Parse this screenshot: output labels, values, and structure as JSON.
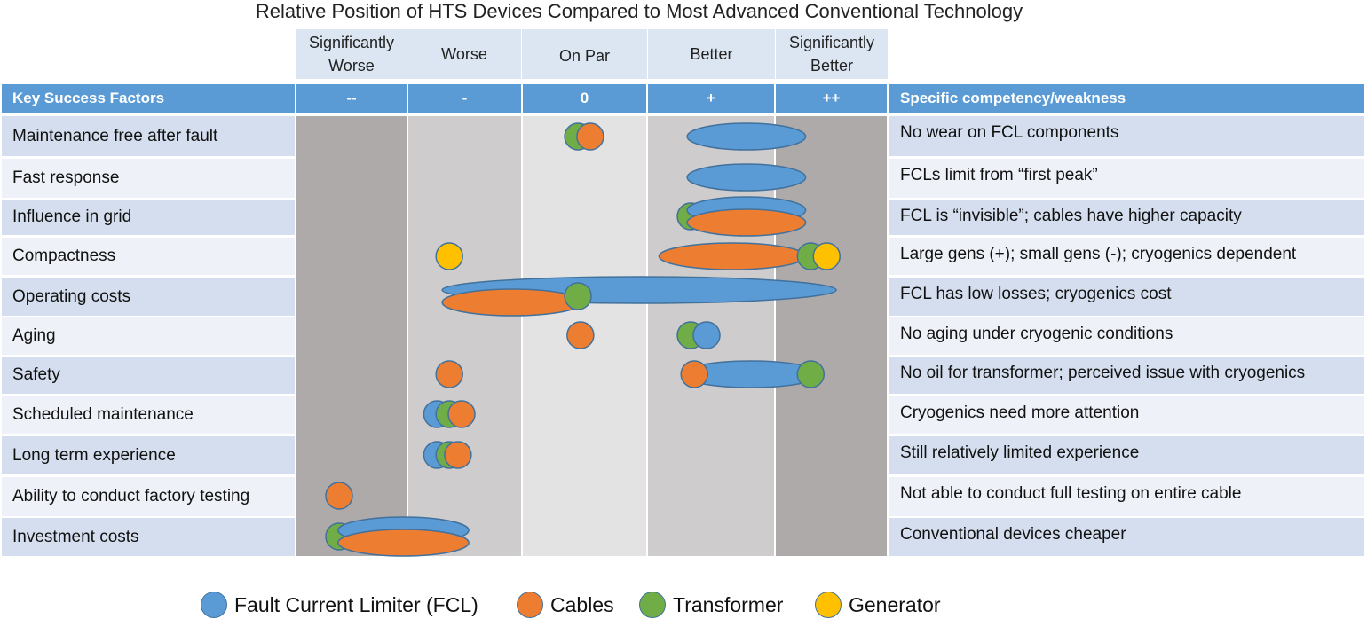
{
  "title": "Relative Position of HTS Devices Compared to Most Advanced Conventional Technology",
  "scale_labels": [
    "Significantly\nWorse",
    "Worse",
    "On Par",
    "Better",
    "Significantly\nBetter"
  ],
  "header": {
    "factors_label": "Key Success Factors",
    "symbols": [
      "--",
      "-",
      "0",
      "+",
      "++"
    ],
    "comment_label": "Specific competency/weakness"
  },
  "rows": [
    {
      "factor": "Maintenance free after fault",
      "comment": "No wear on FCL components"
    },
    {
      "factor": "Fast response",
      "comment": "FCLs  limit from “first peak”"
    },
    {
      "factor": "Influence in grid",
      "comment": "FCL is “invisible”; cables have higher capacity"
    },
    {
      "factor": "Compactness",
      "comment": "Large gens (+); small gens (-); cryogenics dependent"
    },
    {
      "factor": "Operating costs",
      "comment": "FCL has low losses; cryogenics cost"
    },
    {
      "factor": "Aging",
      "comment": "No aging under cryogenic conditions"
    },
    {
      "factor": "Safety",
      "comment": "No oil for transformer; perceived issue with cryogenics"
    },
    {
      "factor": "Scheduled maintenance",
      "comment": "Cryogenics need more attention"
    },
    {
      "factor": "Long term experience",
      "comment": "Still relatively limited experience"
    },
    {
      "factor": "Ability to conduct factory testing",
      "comment": "Not able to conduct full testing on entire cable"
    },
    {
      "factor": "Investment costs",
      "comment": "Conventional devices cheaper"
    }
  ],
  "legend": [
    {
      "name": "Fault Current Limiter (FCL)",
      "color": "#5b9bd5"
    },
    {
      "name": "Cables",
      "color": "#ed7d31"
    },
    {
      "name": "Transformer",
      "color": "#70ad47"
    },
    {
      "name": "Generator",
      "color": "#ffc000"
    }
  ],
  "chart_data": {
    "type": "table",
    "title": "Relative Position of HTS Devices Compared to Most Advanced Conventional Technology",
    "scale": [
      "--",
      "-",
      "0",
      "+",
      "++"
    ],
    "scale_values": [
      -2,
      -1,
      0,
      1,
      2
    ],
    "series": [
      "Fault Current Limiter (FCL)",
      "Cables",
      "Transformer",
      "Generator"
    ],
    "colors": {
      "Fault Current Limiter (FCL)": "#5b9bd5",
      "Cables": "#ed7d31",
      "Transformer": "#70ad47",
      "Generator": "#ffc000"
    },
    "markers": [
      {
        "row": 0,
        "series": "Transformer",
        "from": -0.05,
        "to": -0.05
      },
      {
        "row": 0,
        "series": "Cables",
        "from": 0.05,
        "to": 0.05
      },
      {
        "row": 0,
        "series": "Fault Current Limiter (FCL)",
        "from": 0.95,
        "to": 1.7
      },
      {
        "row": 1,
        "series": "Fault Current Limiter (FCL)",
        "from": 0.95,
        "to": 1.7
      },
      {
        "row": 2,
        "series": "Transformer",
        "from": 0.87,
        "to": 0.87
      },
      {
        "row": 2,
        "series": "Fault Current Limiter (FCL)",
        "from": 0.95,
        "to": 1.7,
        "lane": "top"
      },
      {
        "row": 2,
        "series": "Cables",
        "from": 0.95,
        "to": 1.7,
        "lane": "bottom"
      },
      {
        "row": 3,
        "series": "Generator",
        "from": -1.1,
        "to": -1.1
      },
      {
        "row": 3,
        "series": "Cables",
        "from": 0.72,
        "to": 1.7
      },
      {
        "row": 3,
        "series": "Transformer",
        "from": 1.85,
        "to": 1.85
      },
      {
        "row": 3,
        "series": "Generator",
        "from": 1.98,
        "to": 1.98
      },
      {
        "row": 4,
        "series": "Fault Current Limiter (FCL)",
        "from": -1.05,
        "to": 1.95,
        "lane": "top"
      },
      {
        "row": 4,
        "series": "Cables",
        "from": -1.05,
        "to": -0.12,
        "lane": "bottom"
      },
      {
        "row": 4,
        "series": "Transformer",
        "from": -0.05,
        "to": -0.05
      },
      {
        "row": 5,
        "series": "Cables",
        "from": -0.03,
        "to": -0.03
      },
      {
        "row": 5,
        "series": "Transformer",
        "from": 0.87,
        "to": 0.87
      },
      {
        "row": 5,
        "series": "Fault Current Limiter (FCL)",
        "from": 1.0,
        "to": 1.0
      },
      {
        "row": 6,
        "series": "Cables",
        "from": -1.1,
        "to": -1.1
      },
      {
        "row": 6,
        "series": "Fault Current Limiter (FCL)",
        "from": 0.9,
        "to": 1.82
      },
      {
        "row": 6,
        "series": "Cables",
        "from": 0.9,
        "to": 0.9
      },
      {
        "row": 6,
        "series": "Transformer",
        "from": 1.85,
        "to": 1.85
      },
      {
        "row": 7,
        "series": "Fault Current Limiter (FCL)",
        "from": -1.2,
        "to": -1.2
      },
      {
        "row": 7,
        "series": "Transformer",
        "from": -1.1,
        "to": -1.1
      },
      {
        "row": 7,
        "series": "Cables",
        "from": -1.0,
        "to": -1.0
      },
      {
        "row": 8,
        "series": "Fault Current Limiter (FCL)",
        "from": -1.2,
        "to": -1.2
      },
      {
        "row": 8,
        "series": "Transformer",
        "from": -1.1,
        "to": -1.1
      },
      {
        "row": 8,
        "series": "Cables",
        "from": -1.03,
        "to": -1.03
      },
      {
        "row": 9,
        "series": "Cables",
        "from": -2.0,
        "to": -2.0
      },
      {
        "row": 10,
        "series": "Transformer",
        "from": -2.0,
        "to": -2.0
      },
      {
        "row": 10,
        "series": "Fault Current Limiter (FCL)",
        "from": -1.9,
        "to": -1.05,
        "lane": "top"
      },
      {
        "row": 10,
        "series": "Cables",
        "from": -1.9,
        "to": -1.05,
        "lane": "bottom"
      }
    ]
  }
}
